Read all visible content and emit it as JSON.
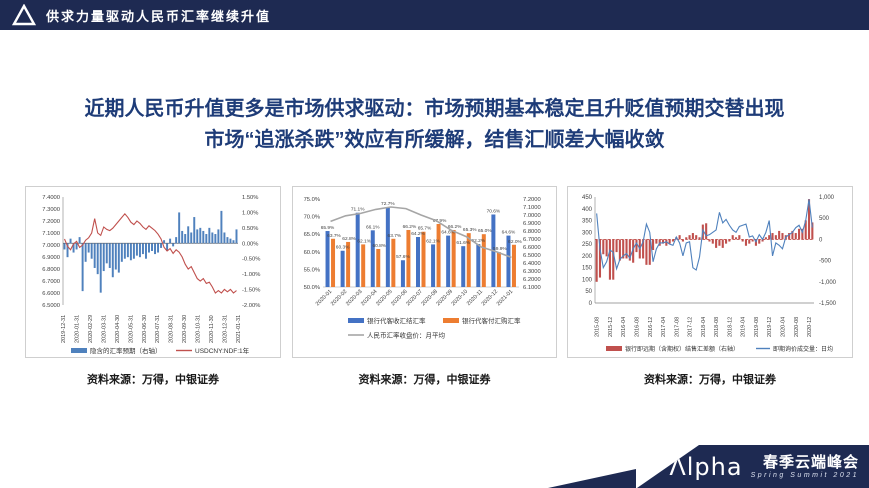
{
  "header": {
    "title": "供求力量驱动人民币汇率继续升值"
  },
  "main_title": {
    "line1": "近期人民币升值更多是市场供求驱动：市场预期基本稳定且升贬值预期交替出现",
    "line2": "市场“追涨杀跌”效应有所缓解，结售汇顺差大幅收敛"
  },
  "captions": {
    "items": [
      "资料来源：万得，中银证券",
      "资料来源：万得，中银证券",
      "资料来源：万得，中银证券"
    ]
  },
  "footer": {
    "logo_text": "Λlpha",
    "event_cn": "春季云端峰会",
    "event_en": "Spring Summit 2021"
  },
  "colors": {
    "navy": "#1e2a52",
    "title_blue": "#1e3c78",
    "bar_blue_old": "#4f81bd",
    "line_red": "#c0504d",
    "bar_blue": "#4472c4",
    "bar_orange": "#ed7d31",
    "line_gray": "#a6a6a6"
  },
  "chart_data": [
    {
      "type": "bar",
      "subtype": "combo-bar-line-dual-axis",
      "title": "",
      "left_axis": {
        "ticks": [
          "7.4000",
          "7.3000",
          "7.2000",
          "7.1000",
          "7.0000",
          "6.9000",
          "6.8000",
          "6.7000",
          "6.6000",
          "6.5000"
        ],
        "min": 6.5,
        "max": 7.4
      },
      "right_axis": {
        "ticks": [
          "1.50%",
          "1.00%",
          "0.50%",
          "0.00%",
          "-0.50%",
          "-1.00%",
          "-1.50%",
          "-2.00%"
        ],
        "min": -2.0,
        "max": 1.5
      },
      "x_labels": [
        "2019-12-31",
        "2020-01-31",
        "2020-02-29",
        "2020-03-31",
        "2020-04-30",
        "2020-05-31",
        "2020-06-30",
        "2020-07-31",
        "2020-08-31",
        "2020-09-30",
        "2020-10-31",
        "2020-11-30",
        "2020-12-31",
        "2021-01-31"
      ],
      "series": [
        {
          "name": "隐含的汇率预期（右轴）",
          "type": "bar",
          "axis": "right",
          "color": "#4f81bd",
          "values": [
            -0.2,
            -0.45,
            0.15,
            -0.3,
            -0.2,
            0.2,
            -1.55,
            -0.6,
            -0.3,
            -0.5,
            -0.8,
            -1.0,
            -1.6,
            -0.9,
            -0.65,
            -0.8,
            -1.1,
            -0.85,
            -0.95,
            -0.6,
            -0.5,
            -0.45,
            -0.55,
            -0.5,
            -0.4,
            -0.45,
            -0.35,
            -0.5,
            -0.3,
            -0.25,
            -0.35,
            -0.3,
            -0.15,
            0.1,
            -0.25,
            0.15,
            -0.1,
            0.2,
            1.0,
            0.4,
            0.3,
            0.55,
            0.35,
            0.85,
            0.45,
            0.5,
            0.4,
            0.3,
            0.5,
            0.35,
            0.3,
            0.45,
            1.05,
            0.35,
            0.2,
            0.15,
            0.1,
            0.45
          ]
        },
        {
          "name": "USDCNY:NDF:1年",
          "type": "line",
          "axis": "left",
          "color": "#c0504d",
          "values": [
            7.05,
            6.99,
            6.96,
            7.01,
            7.03,
            6.98,
            7.0,
            7.04,
            7.06,
            7.1,
            7.22,
            7.1,
            7.08,
            7.15,
            7.13,
            7.12,
            7.14,
            7.17,
            7.2,
            7.23,
            7.26,
            7.23,
            7.19,
            7.17,
            7.2,
            7.18,
            7.15,
            7.13,
            7.16,
            7.14,
            7.12,
            7.09,
            7.05,
            6.98,
            6.95,
            6.97,
            6.93,
            6.96,
            6.94,
            6.9,
            6.84,
            6.8,
            6.82,
            6.77,
            6.72,
            6.7,
            6.72,
            6.68,
            6.69,
            6.65,
            6.6,
            6.62,
            6.6,
            6.63,
            6.61,
            6.63,
            6.6,
            6.62
          ]
        }
      ]
    },
    {
      "type": "bar",
      "subtype": "grouped-bar-line-dual-axis",
      "title": "",
      "left_axis": {
        "ticks": [
          "75.0%",
          "70.0%",
          "65.0%",
          "60.0%",
          "55.0%",
          "50.0%"
        ],
        "min": 50,
        "max": 75
      },
      "right_axis": {
        "ticks": [
          "7.2000",
          "7.1000",
          "7.0000",
          "6.9000",
          "6.8000",
          "6.7000",
          "6.6000",
          "6.5000",
          "6.4000",
          "6.3000",
          "6.2000",
          "6.1000"
        ],
        "min": 6.1,
        "max": 7.2
      },
      "categories": [
        "2020-01",
        "2020-02",
        "2020-03",
        "2020-04",
        "2020-05",
        "2020-06",
        "2020-07",
        "2020-08",
        "2020-09",
        "2020-10",
        "2020-11",
        "2020-12",
        "2021-01"
      ],
      "series": [
        {
          "name": "银行代客收汇结汇率",
          "type": "bar",
          "axis": "left",
          "color": "#4472c4",
          "values": [
            65.9,
            60.3,
            71.1,
            66.1,
            72.7,
            57.6,
            64.2,
            62.1,
            64.6,
            61.6,
            62.2,
            70.6,
            64.6
          ],
          "labels": [
            "65.9%",
            "60.3%",
            "71.1%",
            "66.1%",
            "72.7%",
            "57.6%",
            "64.2%",
            "62.1%",
            "64.6%",
            "61.6%",
            "62.2%",
            "70.6%",
            "64.6%"
          ]
        },
        {
          "name": "银行代客付汇购汇率",
          "type": "bar",
          "axis": "left",
          "color": "#ed7d31",
          "values": [
            63.7,
            62.8,
            62.1,
            60.8,
            63.7,
            66.2,
            65.7,
            67.9,
            66.2,
            65.3,
            65.0,
            59.9,
            62.0
          ],
          "labels": [
            "63.7%",
            "62.8%",
            "62.1%",
            "60.8%",
            "63.7%",
            "66.2%",
            "65.7%",
            "67.9%",
            "66.2%",
            "65.3%",
            "65.0%",
            "59.9%",
            "62.0%"
          ]
        },
        {
          "name": "人民币汇率收盘价：月平均",
          "type": "line",
          "axis": "right",
          "color": "#a6a6a6",
          "values": [
            6.92,
            6.99,
            7.02,
            7.07,
            7.1,
            7.08,
            7.0,
            6.93,
            6.81,
            6.73,
            6.6,
            6.54,
            6.47
          ]
        }
      ]
    },
    {
      "type": "bar",
      "subtype": "combo-bar-line-dual-axis",
      "title": "",
      "left_axis": {
        "ticks": [
          "450",
          "400",
          "350",
          "300",
          "250",
          "200",
          "150",
          "100",
          "50",
          "0"
        ],
        "min": 0,
        "max": 450
      },
      "right_axis": {
        "ticks": [
          "1,000",
          "500",
          "0",
          "-500",
          "-1,000",
          "-1,500"
        ],
        "min": -1500,
        "max": 1000
      },
      "x_labels": [
        "2015-08",
        "2015-12",
        "2016-04",
        "2016-08",
        "2016-12",
        "2017-04",
        "2017-08",
        "2017-12",
        "2018-04",
        "2018-08",
        "2018-12",
        "2019-04",
        "2019-08",
        "2019-12",
        "2020-04",
        "2020-08",
        "2020-12"
      ],
      "x_label_every": 4,
      "zero_line": {
        "axis": "right",
        "style": "dashed",
        "color": "#c0504d"
      },
      "series": [
        {
          "name": "银行即远期（含期权）结售汇差额（右轴）",
          "type": "bar",
          "axis": "right",
          "color": "#c0504d",
          "values": [
            -1000,
            -900,
            -350,
            -400,
            -950,
            -950,
            -300,
            -500,
            -450,
            -450,
            -500,
            -550,
            -300,
            -450,
            -450,
            -600,
            -600,
            -250,
            -100,
            -150,
            -100,
            -150,
            -100,
            -50,
            50,
            100,
            -50,
            50,
            100,
            150,
            100,
            50,
            350,
            380,
            -50,
            -100,
            -200,
            -150,
            -200,
            -100,
            -50,
            100,
            50,
            100,
            -50,
            -150,
            -100,
            -50,
            -150,
            -100,
            -50,
            50,
            100,
            150,
            100,
            200,
            150,
            100,
            150,
            200,
            150,
            250,
            250,
            450,
            950,
            400
          ]
        },
        {
          "name": "即期询价成交量：日均",
          "type": "line",
          "axis": "left",
          "color": "#4f81bd",
          "values": [
            380,
            230,
            150,
            175,
            225,
            215,
            145,
            185,
            200,
            210,
            190,
            230,
            255,
            230,
            260,
            335,
            300,
            175,
            230,
            255,
            255,
            260,
            250,
            245,
            280,
            255,
            200,
            255,
            260,
            150,
            140,
            195,
            310,
            285,
            290,
            300,
            310,
            385,
            340,
            355,
            330,
            310,
            300,
            325,
            330,
            335,
            280,
            285,
            260,
            290,
            270,
            300,
            350,
            200,
            255,
            245,
            230,
            280,
            290,
            300,
            320,
            330,
            300,
            350,
            440,
            320
          ]
        }
      ]
    }
  ]
}
